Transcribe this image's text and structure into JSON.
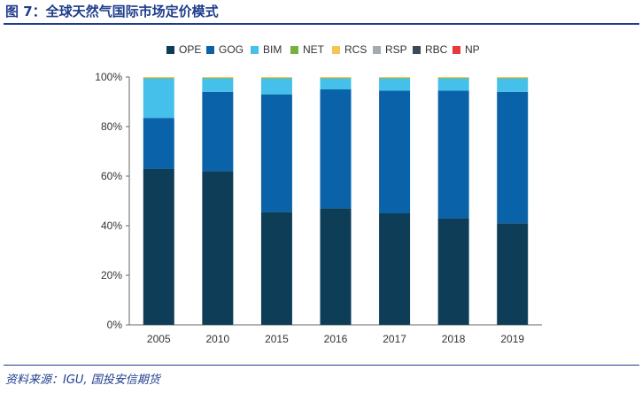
{
  "header": {
    "title": "图 7：全球天然气国际市场定价模式"
  },
  "footer": {
    "source": "资料来源：IGU, 国投安信期货"
  },
  "chart_data": {
    "type": "bar",
    "stacked": true,
    "categories": [
      "2005",
      "2010",
      "2015",
      "2016",
      "2017",
      "2018",
      "2019"
    ],
    "ylim": [
      0,
      100
    ],
    "y_ticks": [
      "0%",
      "20%",
      "40%",
      "60%",
      "80%",
      "100%"
    ],
    "legend_position": "top",
    "series": [
      {
        "name": "OPE",
        "color": "#0d3d57",
        "values": [
          63,
          62,
          45.5,
          47,
          45,
          43,
          41
        ]
      },
      {
        "name": "GOG",
        "color": "#0a63a8",
        "values": [
          20.5,
          32,
          47.5,
          48,
          49.5,
          51.5,
          53
        ]
      },
      {
        "name": "BIM",
        "color": "#45c0ea",
        "values": [
          16,
          5.5,
          6.5,
          4.5,
          5,
          5,
          5.5
        ]
      },
      {
        "name": "NET",
        "color": "#76b041",
        "values": [
          0.1,
          0.1,
          0.1,
          0.1,
          0.1,
          0.1,
          0.1
        ]
      },
      {
        "name": "RCS",
        "color": "#f6c35a",
        "values": [
          0.4,
          0.4,
          0.4,
          0.4,
          0.4,
          0.4,
          0.4
        ]
      },
      {
        "name": "RSP",
        "color": "#a5aab0",
        "values": [
          0,
          0,
          0,
          0,
          0,
          0,
          0
        ]
      },
      {
        "name": "RBC",
        "color": "#3a4a5a",
        "values": [
          0,
          0,
          0,
          0,
          0,
          0,
          0
        ]
      },
      {
        "name": "NP",
        "color": "#e83a3a",
        "values": [
          0,
          0,
          0,
          0,
          0,
          0,
          0
        ]
      }
    ]
  }
}
